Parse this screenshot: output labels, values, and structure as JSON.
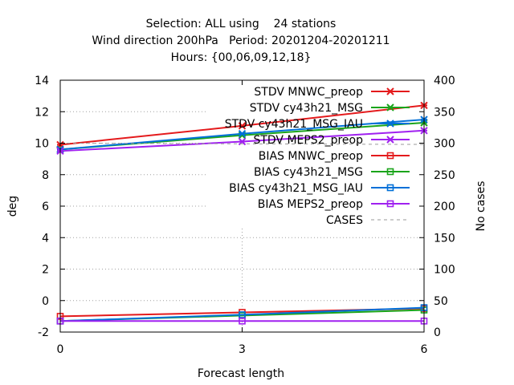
{
  "chart_data": {
    "type": "line",
    "title_lines": [
      "Selection: ALL using    24 stations",
      "Wind direction 200hPa   Period: 20201204-20201211",
      "Hours: {00,06,09,12,18}"
    ],
    "xlabel": "Forecast length",
    "ylabel": "deg",
    "y2label": "No cases",
    "x": [
      0,
      3,
      6
    ],
    "xticks": [
      "0",
      "3",
      "6"
    ],
    "xlim": [
      0,
      6
    ],
    "ylim": [
      -2,
      14
    ],
    "yticks": [
      "-2",
      "0",
      "2",
      "4",
      "6",
      "8",
      "10",
      "12",
      "14"
    ],
    "y2lim": [
      0,
      400
    ],
    "y2ticks": [
      "0",
      "50",
      "100",
      "150",
      "200",
      "250",
      "300",
      "350",
      "400"
    ],
    "grid": true,
    "legend_position": "top-right",
    "series": [
      {
        "name": "STDV MNWC_preop",
        "color": "#e41a1c",
        "marker": "x-star",
        "axis": "y",
        "values": [
          9.9,
          11.1,
          12.4
        ]
      },
      {
        "name": "STDV cy43h21_MSG",
        "color": "#1aa41a",
        "marker": "x-star",
        "axis": "y",
        "values": [
          9.6,
          10.5,
          11.3
        ]
      },
      {
        "name": "STDV cy43h21_MSG_IAU",
        "color": "#0070d8",
        "marker": "x-star",
        "axis": "y",
        "values": [
          9.6,
          10.6,
          11.5
        ]
      },
      {
        "name": "STDV MEPS2_preop",
        "color": "#a020f0",
        "marker": "x-star",
        "axis": "y",
        "values": [
          9.5,
          10.1,
          10.8
        ]
      },
      {
        "name": "BIAS MNWC_preop",
        "color": "#e41a1c",
        "marker": "square",
        "axis": "y",
        "values": [
          -1.0,
          -0.75,
          -0.5
        ]
      },
      {
        "name": "BIAS cy43h21_MSG",
        "color": "#1aa41a",
        "marker": "square",
        "axis": "y",
        "values": [
          -1.3,
          -0.95,
          -0.6
        ]
      },
      {
        "name": "BIAS cy43h21_MSG_IAU",
        "color": "#0070d8",
        "marker": "square",
        "axis": "y",
        "values": [
          -1.3,
          -0.9,
          -0.45
        ]
      },
      {
        "name": "BIAS MEPS2_preop",
        "color": "#a020f0",
        "marker": "square",
        "axis": "y",
        "values": [
          -1.3,
          -1.3,
          -1.3
        ]
      },
      {
        "name": "CASES",
        "color": "#9a9a9a",
        "marker": "none",
        "dashed": true,
        "axis": "y2",
        "values": [
          300,
          299,
          298
        ]
      }
    ]
  }
}
